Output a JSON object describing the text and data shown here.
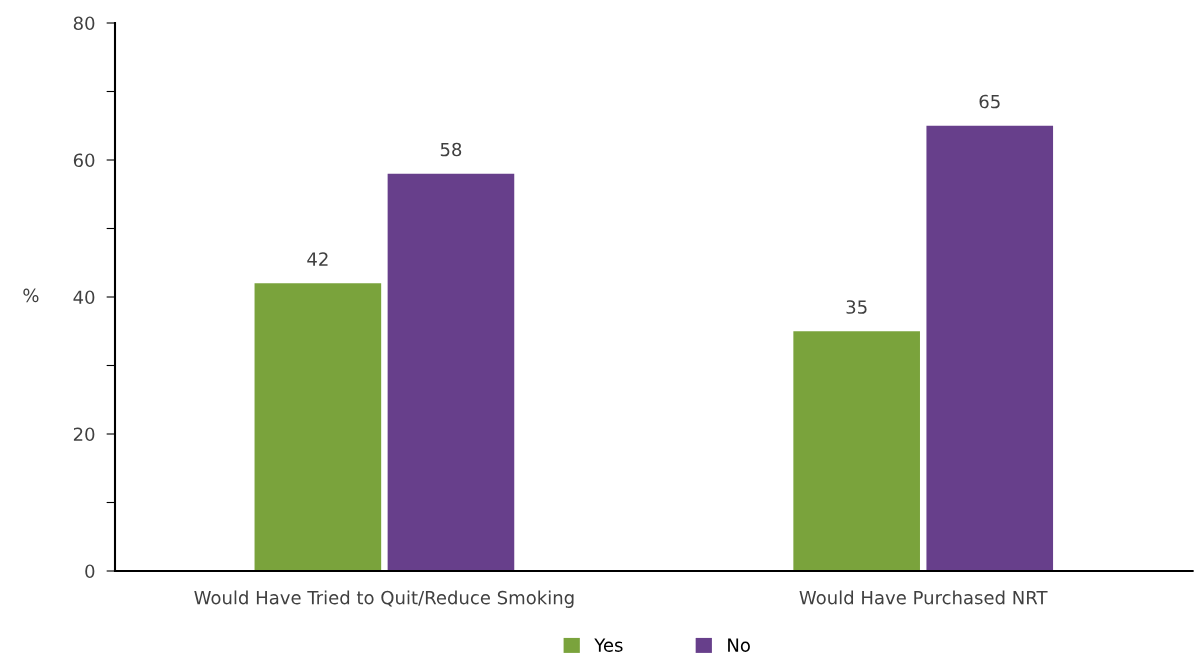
{
  "chart_data": {
    "type": "bar",
    "ylabel": "%",
    "categories": [
      "Would Have Tried to Quit/Reduce Smoking",
      "Would Have Purchased NRT"
    ],
    "series": [
      {
        "name": "Yes",
        "color": "#7aa33c",
        "values": [
          42,
          35
        ]
      },
      {
        "name": "No",
        "color": "#673f8b",
        "values": [
          58,
          65
        ]
      }
    ],
    "ylim": [
      0,
      80
    ],
    "yticks": [
      0,
      {
        "value": 10,
        "label": null
      },
      20,
      {
        "value": 30,
        "label": null
      },
      40,
      {
        "value": 50,
        "label": null
      },
      60,
      {
        "value": 70,
        "label": null
      },
      80
    ],
    "data_labels": true,
    "legend": "bottom",
    "grid": false
  }
}
